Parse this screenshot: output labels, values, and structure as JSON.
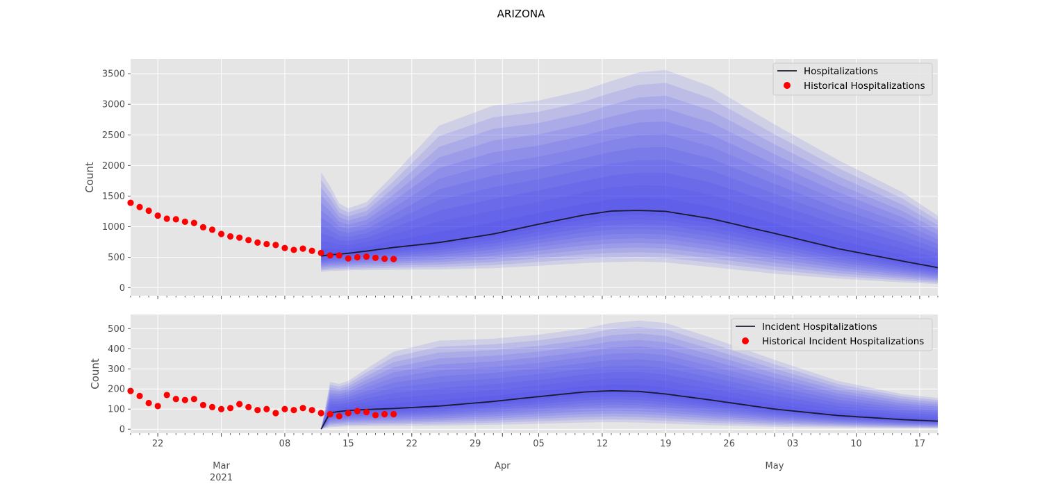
{
  "figure": {
    "title": "ARIZONA"
  },
  "x_axis": {
    "tick_labels": [
      "22",
      "Mar",
      "08",
      "15",
      "22",
      "29",
      "Apr",
      "05",
      "12",
      "19",
      "26",
      "May",
      "03",
      "10",
      "17"
    ],
    "tick_dates": [
      "2021-02-22",
      "2021-03-01",
      "2021-03-08",
      "2021-03-15",
      "2021-03-22",
      "2021-03-29",
      "2021-04-01",
      "2021-04-05",
      "2021-04-12",
      "2021-04-19",
      "2021-04-26",
      "2021-05-01",
      "2021-05-03",
      "2021-05-10",
      "2021-05-17"
    ],
    "month_labels": [
      "Mar",
      "Apr",
      "May"
    ],
    "month_dates": [
      "2021-03-01",
      "2021-04-01",
      "2021-05-01"
    ],
    "year_label": "2021",
    "xlim": [
      "2021-02-19",
      "2021-05-19"
    ]
  },
  "colors": {
    "median": "#1a1a2e",
    "band": "#3b3bf0",
    "historical": "#ff0000",
    "panel_bg": "#e5e5e5",
    "grid": "#ffffff"
  },
  "chart_data": [
    {
      "type": "area",
      "ylabel": "Count",
      "ylim": [
        -130,
        3740
      ],
      "yticks": [
        0,
        500,
        1000,
        1500,
        2000,
        2500,
        3000,
        3500
      ],
      "grid": true,
      "legend_position": "top-right",
      "legend": [
        "Hospitalizations",
        "Historical Hospitalizations"
      ],
      "forecast": {
        "x": [
          "2021-03-12",
          "2021-03-13",
          "2021-03-14",
          "2021-03-15",
          "2021-03-17",
          "2021-03-20",
          "2021-03-25",
          "2021-03-31",
          "2021-04-05",
          "2021-04-10",
          "2021-04-13",
          "2021-04-16",
          "2021-04-19",
          "2021-04-24",
          "2021-05-01",
          "2021-05-08",
          "2021-05-15",
          "2021-05-19"
        ],
        "median": [
          520,
          540,
          550,
          565,
          600,
          660,
          740,
          880,
          1040,
          1190,
          1255,
          1265,
          1250,
          1130,
          890,
          640,
          440,
          330
        ],
        "q025": [
          260,
          275,
          280,
          285,
          290,
          295,
          300,
          320,
          360,
          405,
          420,
          430,
          415,
          340,
          230,
          150,
          90,
          60
        ],
        "q975": [
          1890,
          1660,
          1380,
          1300,
          1400,
          1850,
          2650,
          2980,
          3060,
          3230,
          3380,
          3520,
          3560,
          3290,
          2670,
          2090,
          1570,
          1180
        ]
      },
      "historical": {
        "x": [
          "2021-02-19",
          "2021-02-20",
          "2021-02-21",
          "2021-02-22",
          "2021-02-23",
          "2021-02-24",
          "2021-02-25",
          "2021-02-26",
          "2021-02-27",
          "2021-02-28",
          "2021-03-01",
          "2021-03-02",
          "2021-03-03",
          "2021-03-04",
          "2021-03-05",
          "2021-03-06",
          "2021-03-07",
          "2021-03-08",
          "2021-03-09",
          "2021-03-10",
          "2021-03-11",
          "2021-03-12",
          "2021-03-13",
          "2021-03-14",
          "2021-03-15",
          "2021-03-16",
          "2021-03-17",
          "2021-03-18",
          "2021-03-19",
          "2021-03-20"
        ],
        "y": [
          1390,
          1320,
          1260,
          1180,
          1130,
          1120,
          1080,
          1060,
          990,
          950,
          880,
          840,
          820,
          780,
          740,
          715,
          700,
          650,
          620,
          640,
          605,
          570,
          530,
          530,
          480,
          500,
          510,
          490,
          475,
          470
        ]
      }
    },
    {
      "type": "area",
      "ylabel": "Count",
      "ylim": [
        -20,
        570
      ],
      "yticks": [
        0,
        100,
        200,
        300,
        400,
        500
      ],
      "grid": true,
      "legend_position": "top-right",
      "legend": [
        "Incident Hospitalizations",
        "Historical Incident Hospitalizations"
      ],
      "forecast": {
        "x": [
          "2021-03-12",
          "2021-03-13",
          "2021-03-14",
          "2021-03-15",
          "2021-03-17",
          "2021-03-20",
          "2021-03-25",
          "2021-03-31",
          "2021-04-05",
          "2021-04-10",
          "2021-04-13",
          "2021-04-16",
          "2021-04-19",
          "2021-04-24",
          "2021-05-01",
          "2021-05-08",
          "2021-05-15",
          "2021-05-19"
        ],
        "median": [
          0,
          82,
          88,
          93,
          98,
          103,
          115,
          138,
          162,
          185,
          191,
          188,
          175,
          145,
          100,
          68,
          48,
          40
        ],
        "q025": [
          0,
          10,
          12,
          14,
          15,
          16,
          18,
          22,
          27,
          33,
          35,
          33,
          28,
          20,
          12,
          8,
          5,
          4
        ],
        "q975": [
          0,
          235,
          225,
          240,
          300,
          385,
          440,
          450,
          470,
          500,
          528,
          540,
          528,
          455,
          345,
          240,
          175,
          155
        ]
      },
      "historical": {
        "x": [
          "2021-02-19",
          "2021-02-20",
          "2021-02-21",
          "2021-02-22",
          "2021-02-23",
          "2021-02-24",
          "2021-02-25",
          "2021-02-26",
          "2021-02-27",
          "2021-02-28",
          "2021-03-01",
          "2021-03-02",
          "2021-03-03",
          "2021-03-04",
          "2021-03-05",
          "2021-03-06",
          "2021-03-07",
          "2021-03-08",
          "2021-03-09",
          "2021-03-10",
          "2021-03-11",
          "2021-03-12",
          "2021-03-13",
          "2021-03-14",
          "2021-03-15",
          "2021-03-16",
          "2021-03-17",
          "2021-03-18",
          "2021-03-19",
          "2021-03-20"
        ],
        "y": [
          190,
          165,
          130,
          115,
          170,
          150,
          145,
          150,
          120,
          110,
          100,
          105,
          125,
          110,
          95,
          100,
          80,
          100,
          95,
          105,
          95,
          80,
          75,
          65,
          80,
          90,
          85,
          70,
          75,
          75
        ]
      }
    }
  ]
}
